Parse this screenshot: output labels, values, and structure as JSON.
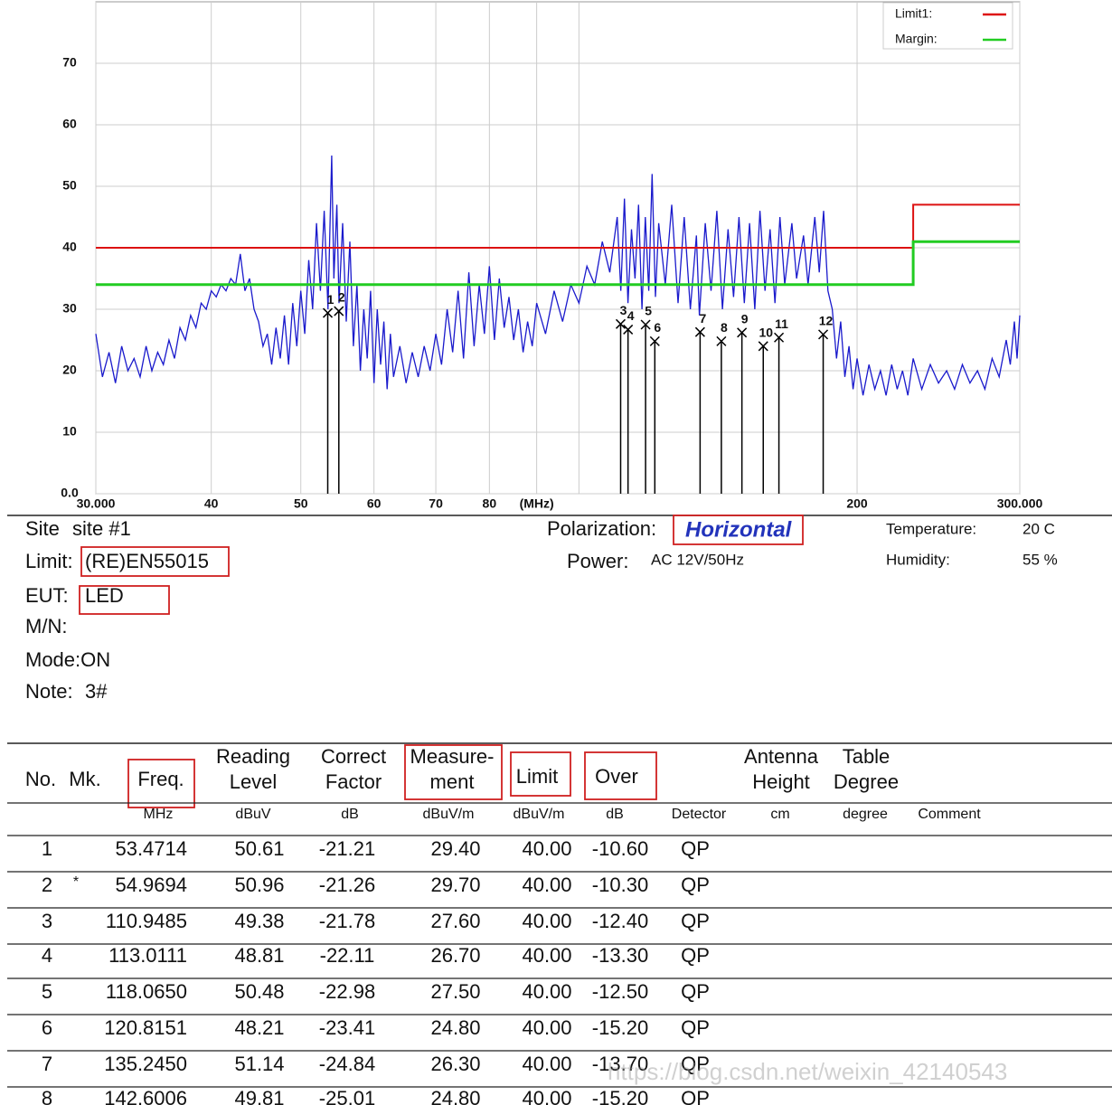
{
  "chart_data": {
    "type": "line",
    "xlog": true,
    "grid": true,
    "legend": "top-right",
    "xlim": [
      30,
      300
    ],
    "ylim": [
      0,
      80
    ],
    "xticks": [
      {
        "value": 30,
        "label": "30.000"
      },
      40,
      50,
      60,
      70,
      80,
      {
        "value": 90,
        "label": "(MHz)"
      },
      {
        "value": 100,
        "label": null
      },
      200,
      {
        "value": 300,
        "label": "300.000"
      }
    ],
    "yticks": [
      {
        "value": 0,
        "label": "0.0"
      },
      10,
      20,
      30,
      40,
      50,
      60,
      70
    ],
    "trace": {
      "color": "#1a1acc",
      "x": [
        30,
        30.5,
        31,
        31.5,
        32,
        32.5,
        33,
        33.5,
        34,
        34.5,
        35,
        35.5,
        36,
        36.5,
        37,
        37.5,
        38,
        38.5,
        39,
        39.5,
        40,
        40.5,
        41,
        41.5,
        42,
        42.5,
        43,
        43.5,
        44,
        44.5,
        45,
        45.5,
        46,
        46.5,
        47,
        47.5,
        48,
        48.5,
        49,
        49.5,
        50,
        50.5,
        51,
        51.5,
        52,
        52.5,
        53,
        53.5,
        54,
        54.3,
        54.7,
        55,
        55.5,
        56,
        56.5,
        57,
        57.5,
        58,
        58.5,
        59,
        59.5,
        60,
        60.5,
        61,
        61.5,
        62,
        62.5,
        63,
        64,
        65,
        66,
        67,
        68,
        69,
        70,
        71,
        72,
        73,
        74,
        75,
        76,
        77,
        78,
        79,
        80,
        81,
        82,
        83,
        84,
        85,
        86,
        87,
        88,
        89,
        90,
        92,
        94,
        96,
        98,
        100,
        102,
        104,
        106,
        108,
        110,
        111,
        112,
        113,
        114,
        115,
        116,
        117,
        118,
        119,
        120,
        121,
        122,
        124,
        126,
        128,
        130,
        132,
        134,
        135,
        137,
        139,
        141,
        143,
        145,
        147,
        149,
        151,
        153,
        155,
        157,
        159,
        161,
        163,
        165,
        167,
        170,
        172,
        175,
        177,
        180,
        182,
        184,
        186,
        188,
        190,
        192,
        194,
        196,
        198,
        200,
        203,
        206,
        209,
        212,
        215,
        218,
        221,
        224,
        227,
        230,
        235,
        240,
        245,
        250,
        255,
        260,
        265,
        270,
        275,
        280,
        285,
        290,
        293,
        296,
        298,
        300
      ],
      "values": [
        26,
        19,
        23,
        18,
        24,
        20,
        22,
        19,
        24,
        20,
        23,
        21,
        25,
        22,
        27,
        25,
        29,
        27,
        31,
        30,
        33,
        32,
        34,
        33,
        35,
        34,
        39,
        33,
        35,
        30,
        28,
        24,
        26,
        21,
        27,
        22,
        29,
        21,
        31,
        24,
        33,
        26,
        38,
        30,
        44,
        33,
        46,
        30,
        55,
        35,
        47,
        31,
        44,
        28,
        41,
        24,
        34,
        20,
        30,
        22,
        33,
        18,
        30,
        21,
        28,
        17,
        26,
        19,
        24,
        18,
        23,
        19,
        24,
        20,
        26,
        21,
        30,
        23,
        33,
        22,
        36,
        24,
        34,
        26,
        37,
        25,
        35,
        27,
        32,
        25,
        30,
        23,
        28,
        24,
        31,
        26,
        33,
        28,
        34,
        31,
        37,
        34,
        41,
        36,
        45,
        33,
        48,
        31,
        43,
        35,
        47,
        30,
        45,
        33,
        52,
        32,
        44,
        34,
        47,
        31,
        45,
        30,
        42,
        29,
        44,
        33,
        46,
        30,
        43,
        32,
        45,
        31,
        44,
        30,
        46,
        33,
        43,
        31,
        45,
        34,
        44,
        35,
        42,
        34,
        45,
        36,
        46,
        33,
        30,
        22,
        28,
        19,
        24,
        17,
        22,
        16,
        21,
        17,
        20,
        16,
        21,
        17,
        20,
        16,
        22,
        17,
        21,
        18,
        20,
        17,
        21,
        18,
        20,
        17,
        22,
        19,
        25,
        21,
        28,
        22,
        29
      ]
    },
    "series": [
      {
        "name": "Limit1:",
        "color": "#dd1111",
        "x": [
          30,
          230,
          230,
          300
        ],
        "values": [
          40,
          40,
          47,
          47
        ]
      },
      {
        "name": "Margin:",
        "color": "#22cc22",
        "x": [
          30,
          230,
          230,
          300
        ],
        "values": [
          34,
          34,
          41,
          41
        ]
      }
    ],
    "markers": {
      "labels": [
        1,
        2,
        3,
        4,
        5,
        6,
        7,
        8,
        9,
        10,
        11,
        12
      ],
      "x": [
        53.4714,
        54.9694,
        110.9485,
        113.0111,
        118.065,
        120.8151,
        135.245,
        142.6006,
        150.1,
        158.3,
        164.6,
        183.8
      ],
      "values": [
        29.4,
        29.7,
        27.6,
        26.7,
        27.5,
        24.8,
        26.3,
        24.8,
        26.2,
        24.0,
        25.4,
        25.9
      ]
    }
  },
  "info": {
    "site_label": "Site",
    "site": "site #1",
    "limit_label": "Limit:",
    "limit": "(RE)EN55015",
    "eut_label": "EUT:",
    "eut": "LED",
    "mn_label": "M/N:",
    "mode": "Mode:ON",
    "note_label": "Note:",
    "note": "3#",
    "polarization_label": "Polarization:",
    "polarization": "Horizontal",
    "power_label": "Power:",
    "power": "AC 12V/50Hz",
    "temperature_label": "Temperature:",
    "temperature": "20 C",
    "humidity_label": "Humidity:",
    "humidity": "55 %"
  },
  "table": {
    "header": [
      [
        "No."
      ],
      [
        "Mk."
      ],
      [
        "Freq."
      ],
      [
        "Reading",
        "Level"
      ],
      [
        "Correct",
        "Factor"
      ],
      [
        "Measure-",
        "ment"
      ],
      [
        "Limit"
      ],
      [
        "Over"
      ],
      [
        "Antenna",
        "Height"
      ],
      [
        "Table",
        "Degree"
      ]
    ],
    "units": [
      "MHz",
      "dBuV",
      "dB",
      "dBuV/m",
      "dBuV/m",
      "dB",
      "Detector",
      "cm",
      "degree",
      "Comment"
    ],
    "rows": [
      [
        "1",
        null,
        "53.4714",
        "50.61",
        "-21.21",
        "29.40",
        "40.00",
        "-10.60",
        "QP"
      ],
      [
        "2",
        "*",
        "54.9694",
        "50.96",
        "-21.26",
        "29.70",
        "40.00",
        "-10.30",
        "QP"
      ],
      [
        "3",
        null,
        "110.9485",
        "49.38",
        "-21.78",
        "27.60",
        "40.00",
        "-12.40",
        "QP"
      ],
      [
        "4",
        null,
        "113.0111",
        "48.81",
        "-22.11",
        "26.70",
        "40.00",
        "-13.30",
        "QP"
      ],
      [
        "5",
        null,
        "118.0650",
        "50.48",
        "-22.98",
        "27.50",
        "40.00",
        "-12.50",
        "QP"
      ],
      [
        "6",
        null,
        "120.8151",
        "48.21",
        "-23.41",
        "24.80",
        "40.00",
        "-15.20",
        "QP"
      ],
      [
        "7",
        null,
        "135.2450",
        "51.14",
        "-24.84",
        "26.30",
        "40.00",
        "-13.70",
        "QP"
      ],
      [
        "8",
        null,
        "142.6006",
        "49.81",
        "-25.01",
        "24.80",
        "40.00",
        "-15.20",
        "QP"
      ]
    ]
  },
  "watermark": "https://blog.csdn.net/weixin_42140543"
}
